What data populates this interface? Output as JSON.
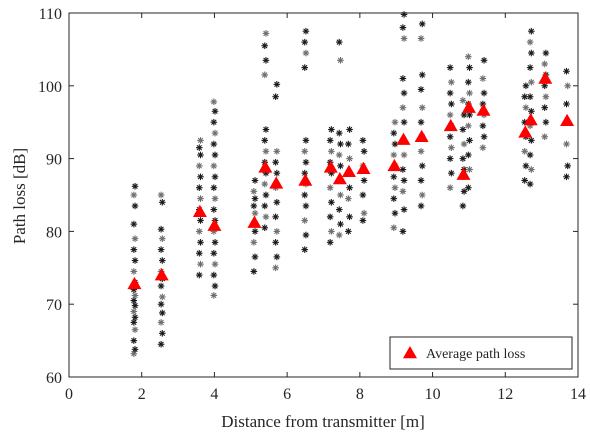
{
  "chart_data": {
    "type": "scatter",
    "xlabel": "Distance from transmitter [m]",
    "ylabel": "Path loss [dB]",
    "xlim": [
      0,
      14
    ],
    "ylim": [
      60,
      110
    ],
    "xticks": [
      0,
      2,
      4,
      6,
      8,
      10,
      12,
      14
    ],
    "yticks": [
      60,
      70,
      80,
      90,
      100,
      110
    ],
    "grid": false,
    "legend": {
      "placement": "bottom-right",
      "entries": [
        "Average path loss"
      ]
    },
    "colors": {
      "measurement_dark": "#1a1a1a",
      "measurement_light": "#6e6e6e",
      "average": "#ff0000"
    },
    "measurement_markers": "asterisk",
    "average_marker": "triangle",
    "series": [
      {
        "name": "",
        "style": "measurements",
        "groups": [
          {
            "x": 1.8,
            "y": [
              63.2,
              63.8,
              65.0,
              66.5,
              67.5,
              68.2,
              69.0,
              69.8,
              70.5,
              71.2,
              72.0,
              73.0,
              74.5,
              76.0,
              77.5,
              79.0,
              81.0,
              83.5,
              85.0,
              86.2
            ]
          },
          {
            "x": 2.55,
            "y": [
              64.5,
              66.0,
              67.5,
              68.8,
              70.0,
              71.0,
              72.5,
              73.5,
              74.5,
              76.0,
              77.5,
              79.0,
              80.3,
              84.0,
              85.0
            ]
          },
          {
            "x": 3.6,
            "y": [
              74.0,
              75.5,
              77.0,
              78.5,
              80.0,
              81.5,
              83.0,
              84.5,
              86.0,
              87.5,
              89.0,
              90.5,
              91.5,
              92.5
            ]
          },
          {
            "x": 4.0,
            "y": [
              71.2,
              72.5,
              74.0,
              75.5,
              77.0,
              78.5,
              80.0,
              81.5,
              83.0,
              84.5,
              86.0,
              87.5,
              89.0,
              90.5,
              92.0,
              93.5,
              95.0,
              96.5,
              97.8
            ]
          },
          {
            "x": 5.1,
            "y": [
              74.5,
              76.5,
              78.5,
              80.0,
              81.0,
              82.5,
              83.5,
              84.5,
              85.5,
              87.0
            ]
          },
          {
            "x": 5.4,
            "y": [
              80.5,
              82.0,
              83.5,
              85.0,
              86.5,
              88.0,
              89.5,
              91.0,
              92.5,
              94.0,
              101.5,
              103.5,
              105.5,
              107.2
            ]
          },
          {
            "x": 5.7,
            "y": [
              75.0,
              76.5,
              78.5,
              80.0,
              82.0,
              84.0,
              86.0,
              88.0,
              89.5,
              91.0,
              98.5,
              100.2
            ]
          },
          {
            "x": 6.5,
            "y": [
              77.5,
              79.5,
              81.5,
              83.5,
              85.0,
              86.5,
              88.0,
              89.5,
              91.0,
              92.5,
              102.5,
              104.5,
              106.0,
              107.5
            ]
          },
          {
            "x": 7.2,
            "y": [
              78.5,
              80.0,
              82.0,
              84.0,
              86.0,
              88.0,
              89.5,
              91.0,
              92.5,
              94.0
            ]
          },
          {
            "x": 7.45,
            "y": [
              79.5,
              81.0,
              83.0,
              85.0,
              87.0,
              89.0,
              90.5,
              92.0,
              93.5,
              103.5,
              106.0
            ]
          },
          {
            "x": 7.7,
            "y": [
              80.0,
              82.0,
              84.5,
              86.0,
              88.0,
              90.0,
              92.0,
              94.0
            ]
          },
          {
            "x": 8.1,
            "y": [
              81.5,
              82.5,
              85.0,
              87.0,
              89.0,
              91.0,
              92.5
            ]
          },
          {
            "x": 8.95,
            "y": [
              80.5,
              82.5,
              84.5,
              86.0,
              87.5,
              89.0,
              90.5,
              92.0,
              93.5,
              95.0
            ]
          },
          {
            "x": 9.2,
            "y": [
              80.0,
              83.0,
              85.5,
              87.0,
              88.5,
              90.5,
              92.5,
              95.0,
              97.0,
              99.0,
              101.0,
              106.5,
              108.0,
              109.8
            ]
          },
          {
            "x": 9.7,
            "y": [
              83.5,
              85.0,
              87.0,
              89.0,
              91.0,
              93.0,
              95.0,
              97.0,
              99.5,
              101.5,
              106.5,
              108.5
            ]
          },
          {
            "x": 10.5,
            "y": [
              86.0,
              88.0,
              90.0,
              91.5,
              93.0,
              94.5,
              96.0,
              97.5,
              99.0,
              100.5,
              102.5
            ]
          },
          {
            "x": 10.85,
            "y": [
              83.5,
              85.5,
              87.5,
              88.5,
              90.0,
              92.0,
              94.0,
              96.0,
              98.0
            ]
          },
          {
            "x": 11.0,
            "y": [
              86.0,
              88.5,
              90.5,
              92.5,
              94.5,
              96.0,
              97.5,
              99.0,
              100.5,
              102.5,
              104.0
            ]
          },
          {
            "x": 11.4,
            "y": [
              91.5,
              93.0,
              94.5,
              96.0,
              97.5,
              99.0,
              101.0,
              103.5
            ]
          },
          {
            "x": 12.55,
            "y": [
              87.0,
              89.0,
              91.0,
              93.0,
              95.0,
              97.0,
              98.5,
              100.0
            ]
          },
          {
            "x": 12.7,
            "y": [
              86.5,
              88.5,
              90.5,
              92.5,
              94.5,
              96.5,
              98.5,
              100.5,
              102.5,
              104.5,
              106.0,
              107.5
            ]
          },
          {
            "x": 13.1,
            "y": [
              93.0,
              95.0,
              97.0,
              98.5,
              100.0,
              101.5,
              103.0,
              104.5
            ]
          },
          {
            "x": 13.7,
            "y": [
              87.5,
              89.0,
              92.0,
              95.0,
              97.5,
              100.0,
              102.0
            ]
          }
        ]
      },
      {
        "name": "Average path loss",
        "style": "average",
        "x": [
          1.8,
          2.55,
          3.6,
          4.0,
          5.1,
          5.4,
          5.7,
          6.5,
          7.2,
          7.45,
          7.7,
          8.1,
          8.95,
          9.2,
          9.7,
          10.5,
          10.85,
          11.0,
          11.4,
          12.55,
          12.7,
          13.1,
          13.7
        ],
        "y": [
          72.8,
          74.0,
          82.7,
          80.8,
          81.2,
          88.8,
          86.6,
          87.0,
          88.8,
          87.2,
          88.2,
          88.6,
          89.0,
          92.6,
          93.0,
          94.5,
          87.8,
          97.0,
          96.6,
          93.6,
          95.3,
          101.0,
          95.2
        ]
      }
    ]
  }
}
